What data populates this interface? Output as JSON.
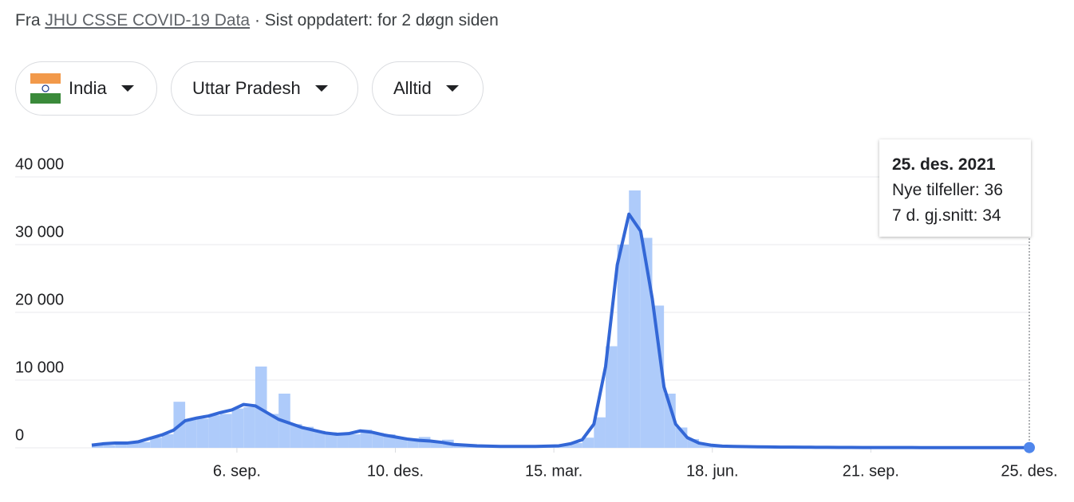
{
  "header": {
    "prefix": "Fra",
    "source": "JHU CSSE COVID-19 Data",
    "updated": "· Sist oppdatert: for 2 døgn siden"
  },
  "filters": [
    "India",
    "Uttar Pradesh",
    "Alltid"
  ],
  "chart_data": {
    "type": "bar-line",
    "x": [
      0,
      7,
      14,
      21,
      28,
      35,
      42,
      49,
      56,
      63,
      70,
      77,
      84,
      91,
      98,
      105,
      112,
      119,
      126,
      133,
      140,
      147,
      154,
      161,
      168,
      175,
      182,
      189,
      196,
      203,
      210,
      217,
      224,
      231,
      238,
      245,
      252,
      259,
      266,
      273,
      280,
      287,
      294,
      301,
      308,
      315,
      322,
      329,
      336,
      343,
      350,
      357,
      364,
      371,
      378,
      385,
      392,
      399,
      406,
      413,
      420,
      427,
      434,
      441,
      448,
      455,
      462,
      469,
      476,
      483,
      490,
      497,
      504,
      511,
      518,
      525,
      532,
      539,
      546,
      553,
      560,
      562
    ],
    "xlim": [
      0,
      562
    ],
    "xticks": [
      {
        "value": 87,
        "label": "6. sep."
      },
      {
        "value": 182,
        "label": "10. des."
      },
      {
        "value": 277,
        "label": "15. mar."
      },
      {
        "value": 372,
        "label": "18. jun."
      },
      {
        "value": 467,
        "label": "21. sep."
      },
      {
        "value": 562,
        "label": "25. des."
      }
    ],
    "ylim": [
      0,
      40000
    ],
    "yticks": [
      0,
      {
        "value": 10000,
        "label": "10 000"
      },
      {
        "value": 20000,
        "label": "20 000"
      },
      {
        "value": 30000,
        "label": "30 000"
      },
      {
        "value": 40000,
        "label": "40 000"
      }
    ],
    "grid": true,
    "series": [
      {
        "name": "Nye tilfeller",
        "type": "bar",
        "color": "#aecbfa",
        "values": [
          600,
          400,
          700,
          750,
          850,
          1500,
          2000,
          6800,
          4200,
          4300,
          4800,
          5000,
          5800,
          6000,
          12000,
          5000,
          8000,
          3500,
          3100,
          2500,
          2300,
          1900,
          2000,
          2700,
          2200,
          2000,
          1500,
          1400,
          1600,
          900,
          1200,
          500,
          400,
          300,
          260,
          200,
          200,
          200,
          220,
          260,
          320,
          700,
          1500,
          4500,
          15000,
          30000,
          38000,
          31000,
          21000,
          8000,
          3000,
          1300,
          600,
          380,
          240,
          190,
          160,
          140,
          120,
          100,
          95,
          85,
          75,
          68,
          58,
          52,
          48,
          44,
          41,
          39,
          37,
          35,
          36,
          33,
          31,
          30,
          32,
          29,
          33,
          35,
          35,
          36
        ]
      },
      {
        "name": "7 d. gj.snitt",
        "type": "line",
        "color": "#3367d6",
        "values": [
          400,
          600,
          700,
          700,
          900,
          1400,
          1900,
          2600,
          4000,
          4400,
          4700,
          5200,
          5600,
          6400,
          6200,
          5200,
          4200,
          3600,
          3000,
          2600,
          2200,
          2000,
          2100,
          2500,
          2300,
          1900,
          1600,
          1300,
          1100,
          1000,
          800,
          500,
          400,
          300,
          250,
          200,
          200,
          200,
          200,
          250,
          300,
          600,
          1200,
          3500,
          12000,
          27000,
          34500,
          32000,
          22000,
          9000,
          3500,
          1500,
          700,
          400,
          250,
          200,
          170,
          150,
          130,
          110,
          100,
          90,
          80,
          70,
          60,
          55,
          50,
          45,
          40,
          40,
          38,
          36,
          35,
          34,
          33,
          32,
          31,
          30,
          32,
          33,
          34,
          34
        ]
      }
    ],
    "tooltip": {
      "title": "25. des. 2021"
    }
  }
}
